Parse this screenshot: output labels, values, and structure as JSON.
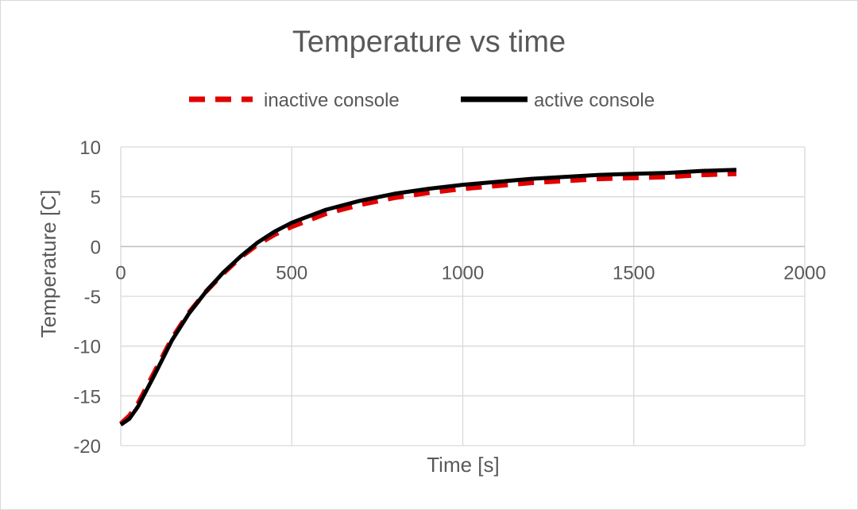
{
  "chart_data": {
    "type": "line",
    "title": "Temperature vs time",
    "xlabel": "Time [s]",
    "ylabel": "Temperature [C]",
    "xlim": [
      0,
      2000
    ],
    "ylim": [
      -20,
      10
    ],
    "xticks": [
      0,
      500,
      1000,
      1500,
      2000
    ],
    "yticks": [
      -20,
      -15,
      -10,
      -5,
      0,
      5,
      10
    ],
    "grid": true,
    "legend_position": "top",
    "series": [
      {
        "name": "inactive console",
        "color": "#e00000",
        "style": "dashed",
        "x": [
          0,
          25,
          50,
          100,
          150,
          200,
          250,
          300,
          350,
          400,
          450,
          500,
          600,
          700,
          800,
          900,
          1000,
          1100,
          1200,
          1300,
          1400,
          1500,
          1600,
          1700,
          1800
        ],
        "y": [
          -17.8,
          -17.0,
          -15.8,
          -12.5,
          -9.2,
          -6.6,
          -4.5,
          -2.7,
          -1.1,
          0.2,
          1.2,
          2.0,
          3.3,
          4.2,
          4.9,
          5.4,
          5.8,
          6.1,
          6.4,
          6.6,
          6.8,
          6.9,
          7.0,
          7.2,
          7.3
        ]
      },
      {
        "name": "active console",
        "color": "#000000",
        "style": "solid",
        "x": [
          0,
          25,
          50,
          100,
          150,
          200,
          250,
          300,
          350,
          400,
          450,
          500,
          600,
          700,
          800,
          900,
          1000,
          1100,
          1200,
          1300,
          1400,
          1500,
          1600,
          1700,
          1800
        ],
        "y": [
          -17.9,
          -17.3,
          -16.1,
          -12.8,
          -9.4,
          -6.7,
          -4.5,
          -2.6,
          -1.0,
          0.4,
          1.5,
          2.4,
          3.7,
          4.6,
          5.3,
          5.8,
          6.2,
          6.5,
          6.8,
          7.0,
          7.2,
          7.3,
          7.4,
          7.6,
          7.7
        ]
      }
    ]
  }
}
